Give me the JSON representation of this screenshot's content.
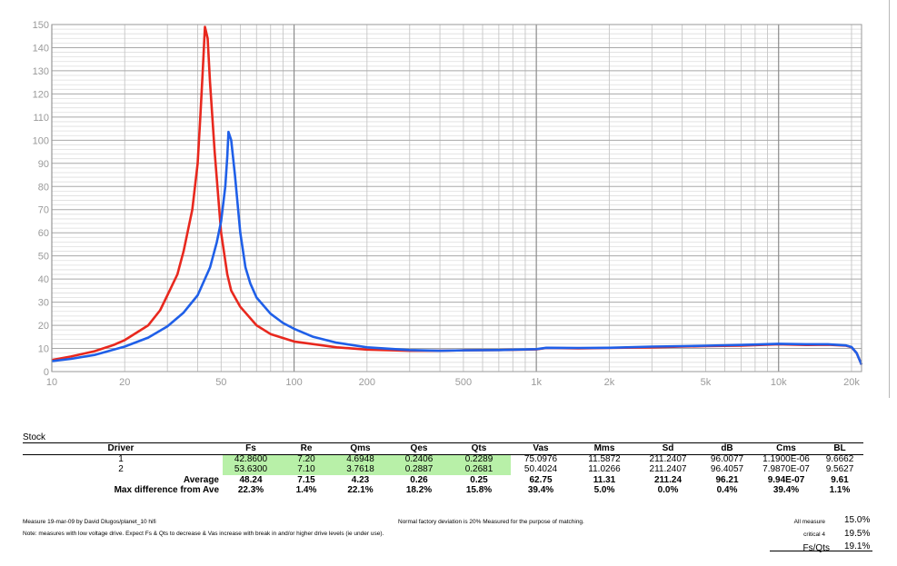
{
  "chart_data": {
    "type": "line",
    "xscale": "log",
    "xlim": [
      10,
      22000
    ],
    "ylim": [
      0,
      150
    ],
    "grid": true,
    "title": "",
    "xlabel": "",
    "ylabel": "",
    "x_ticks": [
      {
        "value": 10,
        "label": "10"
      },
      {
        "value": 20,
        "label": "20"
      },
      {
        "value": 50,
        "label": "50"
      },
      {
        "value": 100,
        "label": "100"
      },
      {
        "value": 200,
        "label": "200"
      },
      {
        "value": 500,
        "label": "500"
      },
      {
        "value": 1000,
        "label": "1k"
      },
      {
        "value": 2000,
        "label": "2k"
      },
      {
        "value": 5000,
        "label": "5k"
      },
      {
        "value": 10000,
        "label": "10k"
      },
      {
        "value": 20000,
        "label": "20k"
      }
    ],
    "y_ticks": [
      0,
      10,
      20,
      30,
      40,
      50,
      60,
      70,
      80,
      90,
      100,
      110,
      120,
      130,
      140,
      150
    ],
    "series": [
      {
        "color": "#e8281e",
        "points": [
          [
            10,
            5
          ],
          [
            12,
            6.5
          ],
          [
            15,
            8.8
          ],
          [
            18,
            11.5
          ],
          [
            20,
            13.6
          ],
          [
            25,
            20
          ],
          [
            28,
            26.5
          ],
          [
            30,
            33
          ],
          [
            33,
            42
          ],
          [
            35,
            52
          ],
          [
            38,
            70
          ],
          [
            40,
            90
          ],
          [
            41,
            110
          ],
          [
            42,
            130
          ],
          [
            42.86,
            149
          ],
          [
            44,
            144
          ],
          [
            45,
            125
          ],
          [
            47,
            95
          ],
          [
            50,
            60
          ],
          [
            53,
            42
          ],
          [
            55,
            35
          ],
          [
            60,
            28
          ],
          [
            70,
            20
          ],
          [
            80,
            16.2
          ],
          [
            100,
            13
          ],
          [
            150,
            10.5
          ],
          [
            200,
            9.5
          ],
          [
            300,
            9
          ],
          [
            400,
            9
          ],
          [
            500,
            9.2
          ],
          [
            700,
            9.3
          ],
          [
            1000,
            9.6
          ],
          [
            1100,
            10.2
          ],
          [
            1500,
            10
          ],
          [
            2000,
            10.2
          ],
          [
            3000,
            10.5
          ],
          [
            4000,
            10.8
          ],
          [
            5000,
            11
          ],
          [
            7000,
            11.2
          ],
          [
            10000,
            11.8
          ],
          [
            13000,
            11.5
          ],
          [
            16000,
            11.6
          ],
          [
            19000,
            11.2
          ],
          [
            20000,
            10.5
          ],
          [
            21000,
            8
          ],
          [
            22000,
            3
          ]
        ]
      },
      {
        "color": "#1f5fe8",
        "points": [
          [
            10,
            4.5
          ],
          [
            12,
            5.5
          ],
          [
            15,
            7.2
          ],
          [
            20,
            10.8
          ],
          [
            25,
            14.7
          ],
          [
            30,
            19.5
          ],
          [
            35,
            25.5
          ],
          [
            40,
            33
          ],
          [
            45,
            45
          ],
          [
            48,
            56
          ],
          [
            50,
            65
          ],
          [
            52,
            80
          ],
          [
            53,
            93
          ],
          [
            53.63,
            103.6
          ],
          [
            55,
            100
          ],
          [
            57,
            85
          ],
          [
            60,
            60
          ],
          [
            63,
            45
          ],
          [
            66,
            38
          ],
          [
            70,
            32
          ],
          [
            80,
            25
          ],
          [
            90,
            21
          ],
          [
            100,
            18.5
          ],
          [
            120,
            15
          ],
          [
            150,
            12.5
          ],
          [
            200,
            10.5
          ],
          [
            300,
            9.3
          ],
          [
            400,
            9
          ],
          [
            500,
            9.2
          ],
          [
            700,
            9.3
          ],
          [
            1000,
            9.7
          ],
          [
            1100,
            10.3
          ],
          [
            1500,
            10.2
          ],
          [
            2000,
            10.3
          ],
          [
            3000,
            10.8
          ],
          [
            4000,
            11
          ],
          [
            5000,
            11.2
          ],
          [
            7000,
            11.5
          ],
          [
            10000,
            12
          ],
          [
            13000,
            11.8
          ],
          [
            16000,
            11.8
          ],
          [
            19000,
            11.3
          ],
          [
            20000,
            10.6
          ],
          [
            21000,
            8
          ],
          [
            22000,
            3
          ]
        ]
      }
    ]
  },
  "section_label": "Stock",
  "table": {
    "headers": [
      "Driver",
      "Fs",
      "Re",
      "Qms",
      "Qes",
      "Qts",
      "Vas",
      "Mms",
      "Sd",
      "dB",
      "Cms",
      "BL"
    ],
    "rows": [
      [
        "1",
        "42.8600",
        "7.20",
        "4.6948",
        "0.2406",
        "0.2289",
        "75.0976",
        "11.5872",
        "211.2407",
        "96.0077",
        "1.1900E-06",
        "9.6662"
      ],
      [
        "2",
        "53.6300",
        "7.10",
        "3.7618",
        "0.2887",
        "0.2681",
        "50.4024",
        "11.0266",
        "211.2407",
        "96.4057",
        "7.9870E-07",
        "9.5627"
      ]
    ],
    "average": [
      "Average",
      "48.24",
      "7.15",
      "4.23",
      "0.26",
      "0.25",
      "62.75",
      "11.31",
      "211.24",
      "96.21",
      "9.94E-07",
      "9.61"
    ],
    "maxdiff": [
      "Max difference from Ave",
      "22.3%",
      "1.4%",
      "22.1%",
      "18.2%",
      "15.8%",
      "39.4%",
      "5.0%",
      "0.0%",
      "0.4%",
      "39.4%",
      "1.1%"
    ],
    "highlight_color": "#b8f0a8"
  },
  "notes": {
    "measure": "Measure 19-mar-09 by David Dlugos/planet_10 hifi",
    "deviation": "Normal factory deviation is 20% Measured for the purpose of matching.",
    "drive": "Note: measures with low voltage drive.  Expect Fs & Qts to decrease & Vas increase with break in and/or higher drive levels (ie under use)."
  },
  "stats": [
    {
      "label": "All measure",
      "value": "15.0%"
    },
    {
      "label": "critical 4",
      "value": "19.5%"
    },
    {
      "label": "Fs/Qts",
      "value": "19.1%"
    }
  ]
}
